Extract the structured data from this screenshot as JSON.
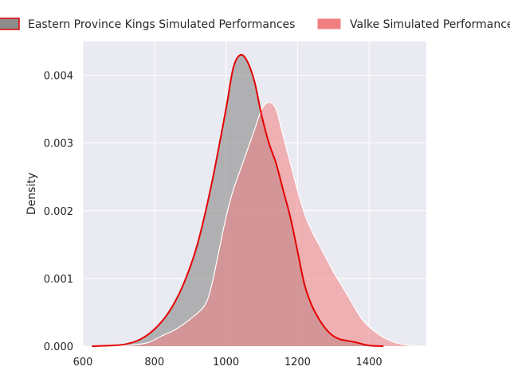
{
  "chart_data": {
    "type": "area",
    "ylabel": "Density",
    "xlabel": "",
    "xlim": [
      600,
      1560
    ],
    "ylim": [
      0,
      0.0045
    ],
    "x_ticks": [
      600,
      800,
      1000,
      1200,
      1400
    ],
    "y_ticks": [
      0.0,
      0.001,
      0.002,
      0.003,
      0.004
    ],
    "y_tick_labels": [
      "0.000",
      "0.001",
      "0.002",
      "0.003",
      "0.004"
    ],
    "grid": true,
    "legend_position": "top",
    "series": [
      {
        "name": "Eastern Province Kings Simulated Performances",
        "fill_color": "#8c8c8c",
        "line_color": "#e50000",
        "x": [
          625,
          680,
          720,
          760,
          800,
          840,
          880,
          920,
          960,
          1000,
          1020,
          1040,
          1060,
          1080,
          1100,
          1120,
          1140,
          1160,
          1180,
          1200,
          1220,
          1240,
          1260,
          1280,
          1300,
          1320,
          1340,
          1360,
          1400,
          1440
        ],
        "y": [
          0.0,
          1e-05,
          3e-05,
          0.0001,
          0.00025,
          0.0005,
          0.0009,
          0.0015,
          0.0024,
          0.0035,
          0.0041,
          0.0043,
          0.0042,
          0.0039,
          0.0034,
          0.003,
          0.0027,
          0.0023,
          0.0019,
          0.0014,
          0.0009,
          0.0006,
          0.0004,
          0.00025,
          0.00015,
          0.0001,
          8e-05,
          6e-05,
          1e-05,
          0.0
        ]
      },
      {
        "name": "Valke Simulated Performances",
        "fill_color": "#f08080",
        "line_color": "#ffffff",
        "x": [
          625,
          720,
          780,
          820,
          860,
          900,
          940,
          960,
          980,
          1000,
          1020,
          1040,
          1060,
          1080,
          1100,
          1120,
          1140,
          1160,
          1180,
          1200,
          1220,
          1240,
          1260,
          1280,
          1300,
          1340,
          1380,
          1420,
          1460,
          1500,
          1545
        ],
        "y": [
          0.0,
          1e-05,
          5e-05,
          0.00015,
          0.00025,
          0.0004,
          0.0006,
          0.0009,
          0.0014,
          0.0019,
          0.0023,
          0.0026,
          0.0029,
          0.0032,
          0.0035,
          0.0036,
          0.0035,
          0.0031,
          0.0027,
          0.0023,
          0.00195,
          0.0017,
          0.0015,
          0.0013,
          0.0011,
          0.00075,
          0.0004,
          0.0002,
          8e-05,
          2e-05,
          0.0
        ]
      }
    ]
  }
}
